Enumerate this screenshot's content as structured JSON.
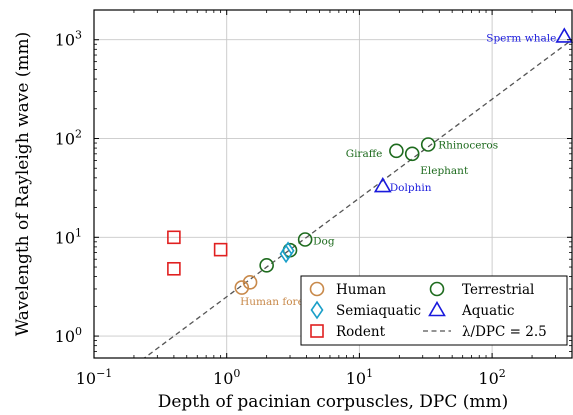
{
  "chart_data": {
    "type": "scatter",
    "xlabel": "Depth of pacinian corpuscles, DPC (mm)",
    "ylabel": "Wavelength of Rayleigh wave (mm)",
    "xscale": "log",
    "yscale": "log",
    "xlim": [
      0.1,
      400
    ],
    "ylim": [
      0.6,
      2000
    ],
    "grid": true,
    "legend_position": "bottom-right",
    "x_tick_values": [
      0.1,
      1,
      10,
      100
    ],
    "x_tick_labels": [
      "10",
      "10",
      "10",
      "10"
    ],
    "x_tick_exponents": [
      "−1",
      "0",
      "1",
      "2"
    ],
    "y_tick_values": [
      1,
      10,
      100,
      1000
    ],
    "y_tick_labels": [
      "10",
      "10",
      "10",
      "10"
    ],
    "y_tick_exponents": [
      "0",
      "1",
      "2",
      "3"
    ],
    "series": [
      {
        "name": "Human",
        "marker": "circle",
        "color": "#c8894a",
        "points": [
          [
            1.3,
            3.1
          ],
          [
            1.5,
            3.5
          ]
        ]
      },
      {
        "name": "Terrestrial",
        "marker": "circle",
        "color": "#1e6b1e",
        "points": [
          [
            2.0,
            5.2
          ],
          [
            3.0,
            7.4
          ],
          [
            3.9,
            9.5
          ],
          [
            19,
            75
          ],
          [
            25,
            70
          ],
          [
            33,
            87
          ]
        ]
      },
      {
        "name": "Semiaquatic",
        "marker": "diamond",
        "color": "#1a9fc8",
        "points": [
          [
            2.8,
            6.8
          ],
          [
            2.9,
            7.3
          ]
        ]
      },
      {
        "name": "Aquatic",
        "marker": "triangle",
        "color": "#1a1adc",
        "points": [
          [
            15,
            33
          ],
          [
            350,
            1080
          ]
        ]
      },
      {
        "name": "Rodent",
        "marker": "square",
        "color": "#e02020",
        "points": [
          [
            0.4,
            10.0
          ],
          [
            0.4,
            4.8
          ],
          [
            0.9,
            7.5
          ]
        ]
      }
    ],
    "fit_line": {
      "name": "λ/DPC = 2.5",
      "slope": 2.5,
      "color": "#555555",
      "x_range": [
        0.1,
        400
      ]
    },
    "annotations": [
      {
        "text": "Human forearm",
        "x": 1.45,
        "y": 3.3,
        "color": "#c8894a"
      },
      {
        "text": "Dog",
        "x": 3.9,
        "y": 9.5,
        "color": "#1e6b1e"
      },
      {
        "text": "Giraffe",
        "x": 19,
        "y": 75,
        "color": "#1e6b1e"
      },
      {
        "text": "Elephant",
        "x": 25,
        "y": 70,
        "color": "#1e6b1e"
      },
      {
        "text": "Rhinoceros",
        "x": 33,
        "y": 87,
        "color": "#1e6b1e"
      },
      {
        "text": "Dolphin",
        "x": 15,
        "y": 33,
        "color": "#1a1adc"
      },
      {
        "text": "Sperm whale",
        "x": 350,
        "y": 1080,
        "color": "#1a1adc"
      }
    ],
    "legend": [
      {
        "label": "Human",
        "marker": "circle",
        "color": "#c8894a"
      },
      {
        "label": "Terrestrial",
        "marker": "circle",
        "color": "#1e6b1e"
      },
      {
        "label": "Semiaquatic",
        "marker": "diamond",
        "color": "#1a9fc8"
      },
      {
        "label": "Aquatic",
        "marker": "triangle",
        "color": "#1a1adc"
      },
      {
        "label": "Rodent",
        "marker": "square",
        "color": "#e02020"
      },
      {
        "label": "λ/DPC = 2.5",
        "marker": "dashed-line",
        "color": "#555555"
      }
    ]
  }
}
